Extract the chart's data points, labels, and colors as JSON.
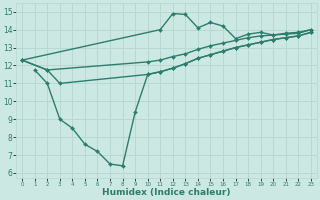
{
  "lines": [
    {
      "x": [
        0,
        11,
        12,
        13,
        14,
        15,
        16,
        17,
        18,
        19,
        20,
        21,
        22,
        23
      ],
      "y": [
        12.3,
        14.0,
        14.9,
        14.85,
        14.1,
        14.4,
        14.2,
        13.5,
        13.75,
        13.85,
        13.7,
        13.75,
        13.8,
        14.0
      ]
    },
    {
      "x": [
        0,
        2,
        10,
        11,
        12,
        13,
        14,
        15,
        16,
        17,
        18,
        19,
        20,
        21,
        22,
        23
      ],
      "y": [
        12.3,
        11.75,
        12.2,
        12.3,
        12.5,
        12.65,
        12.9,
        13.1,
        13.25,
        13.4,
        13.55,
        13.65,
        13.7,
        13.8,
        13.85,
        14.0
      ]
    },
    {
      "x": [
        0,
        2,
        3,
        10,
        11,
        12,
        13,
        14,
        15,
        16,
        17,
        18,
        19,
        20,
        21,
        22,
        23
      ],
      "y": [
        12.3,
        11.75,
        11.0,
        11.5,
        11.65,
        11.85,
        12.1,
        12.4,
        12.6,
        12.8,
        13.0,
        13.15,
        13.3,
        13.45,
        13.55,
        13.65,
        13.85
      ]
    },
    {
      "x": [
        1,
        2,
        3,
        4,
        5,
        6,
        7,
        8,
        9,
        10,
        11,
        12,
        13,
        14,
        15,
        16,
        17,
        18,
        19,
        20,
        21,
        22,
        23
      ],
      "y": [
        11.75,
        11.0,
        9.0,
        8.5,
        7.6,
        7.2,
        6.5,
        6.4,
        9.4,
        11.5,
        11.65,
        11.85,
        12.1,
        12.4,
        12.6,
        12.8,
        13.0,
        13.15,
        13.3,
        13.45,
        13.55,
        13.65,
        13.85
      ]
    }
  ],
  "xlabel": "Humidex (Indice chaleur)",
  "xlabel_fontsize": 6.5,
  "xlim": [
    -0.5,
    23.5
  ],
  "ylim": [
    5.7,
    15.5
  ],
  "xticks": [
    0,
    1,
    2,
    3,
    4,
    5,
    6,
    7,
    8,
    9,
    10,
    11,
    12,
    13,
    14,
    15,
    16,
    17,
    18,
    19,
    20,
    21,
    22,
    23
  ],
  "yticks": [
    6,
    7,
    8,
    9,
    10,
    11,
    12,
    13,
    14,
    15
  ],
  "xtick_fontsize": 4.0,
  "ytick_fontsize": 5.5,
  "grid_color": "#b8d8d2",
  "background_color": "#cce8e2",
  "line_color": "#2d7d6e",
  "marker": "D",
  "markersize": 2.0,
  "linewidth": 1.0
}
